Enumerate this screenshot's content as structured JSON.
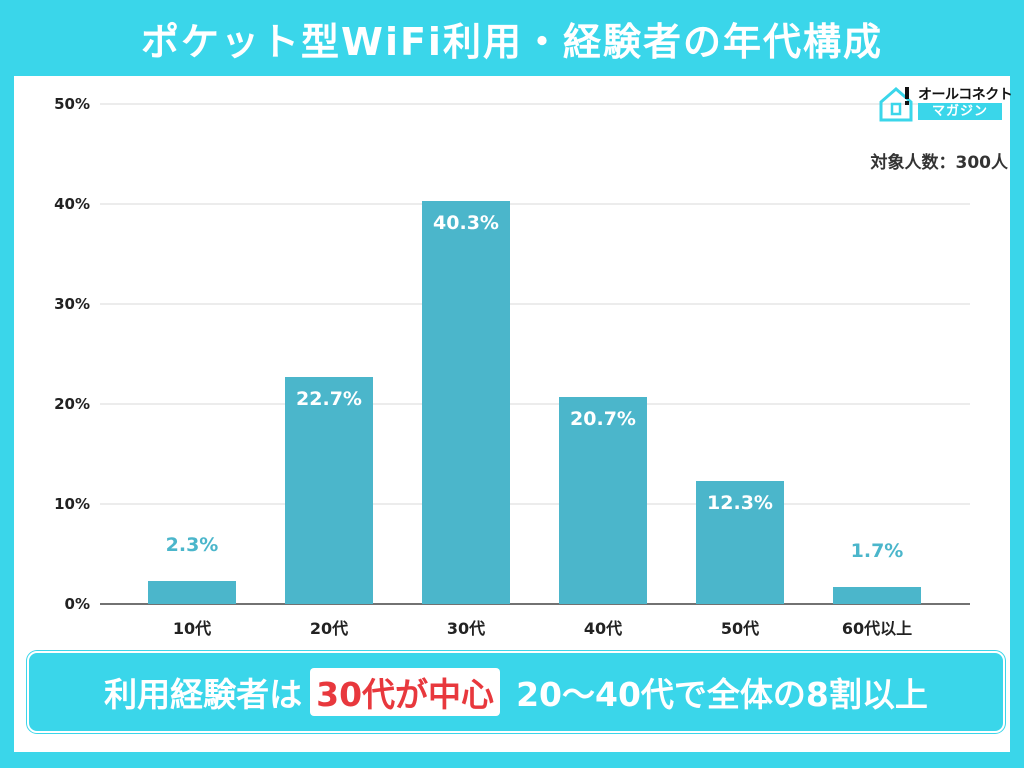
{
  "title": "ポケット型WiFi利用・経験者の年代構成",
  "logo": {
    "line1": "オールコネクト",
    "line2": "マガジン"
  },
  "sample_note": "対象人数：300人",
  "chart_data": {
    "type": "bar",
    "categories": [
      "10代",
      "20代",
      "30代",
      "40代",
      "50代",
      "60代以上"
    ],
    "values": [
      2.3,
      22.7,
      40.3,
      20.7,
      12.3,
      1.7
    ],
    "value_labels": [
      "2.3%",
      "22.7%",
      "40.3%",
      "20.7%",
      "12.3%",
      "1.7%"
    ],
    "yticks": [
      "0%",
      "10%",
      "20%",
      "30%",
      "40%",
      "50%"
    ],
    "ylim": [
      0,
      50
    ],
    "grid": true,
    "xlabel": "",
    "ylabel": "",
    "bar_color": "#4bb6cb"
  },
  "callout": {
    "prefix": "利用経験者は",
    "highlight": "30代が中心",
    "suffix": "20〜40代で全体の8割以上"
  },
  "colors": {
    "accent": "#3ad6ea",
    "bar": "#4bb6cb",
    "highlight": "#e8383d"
  }
}
